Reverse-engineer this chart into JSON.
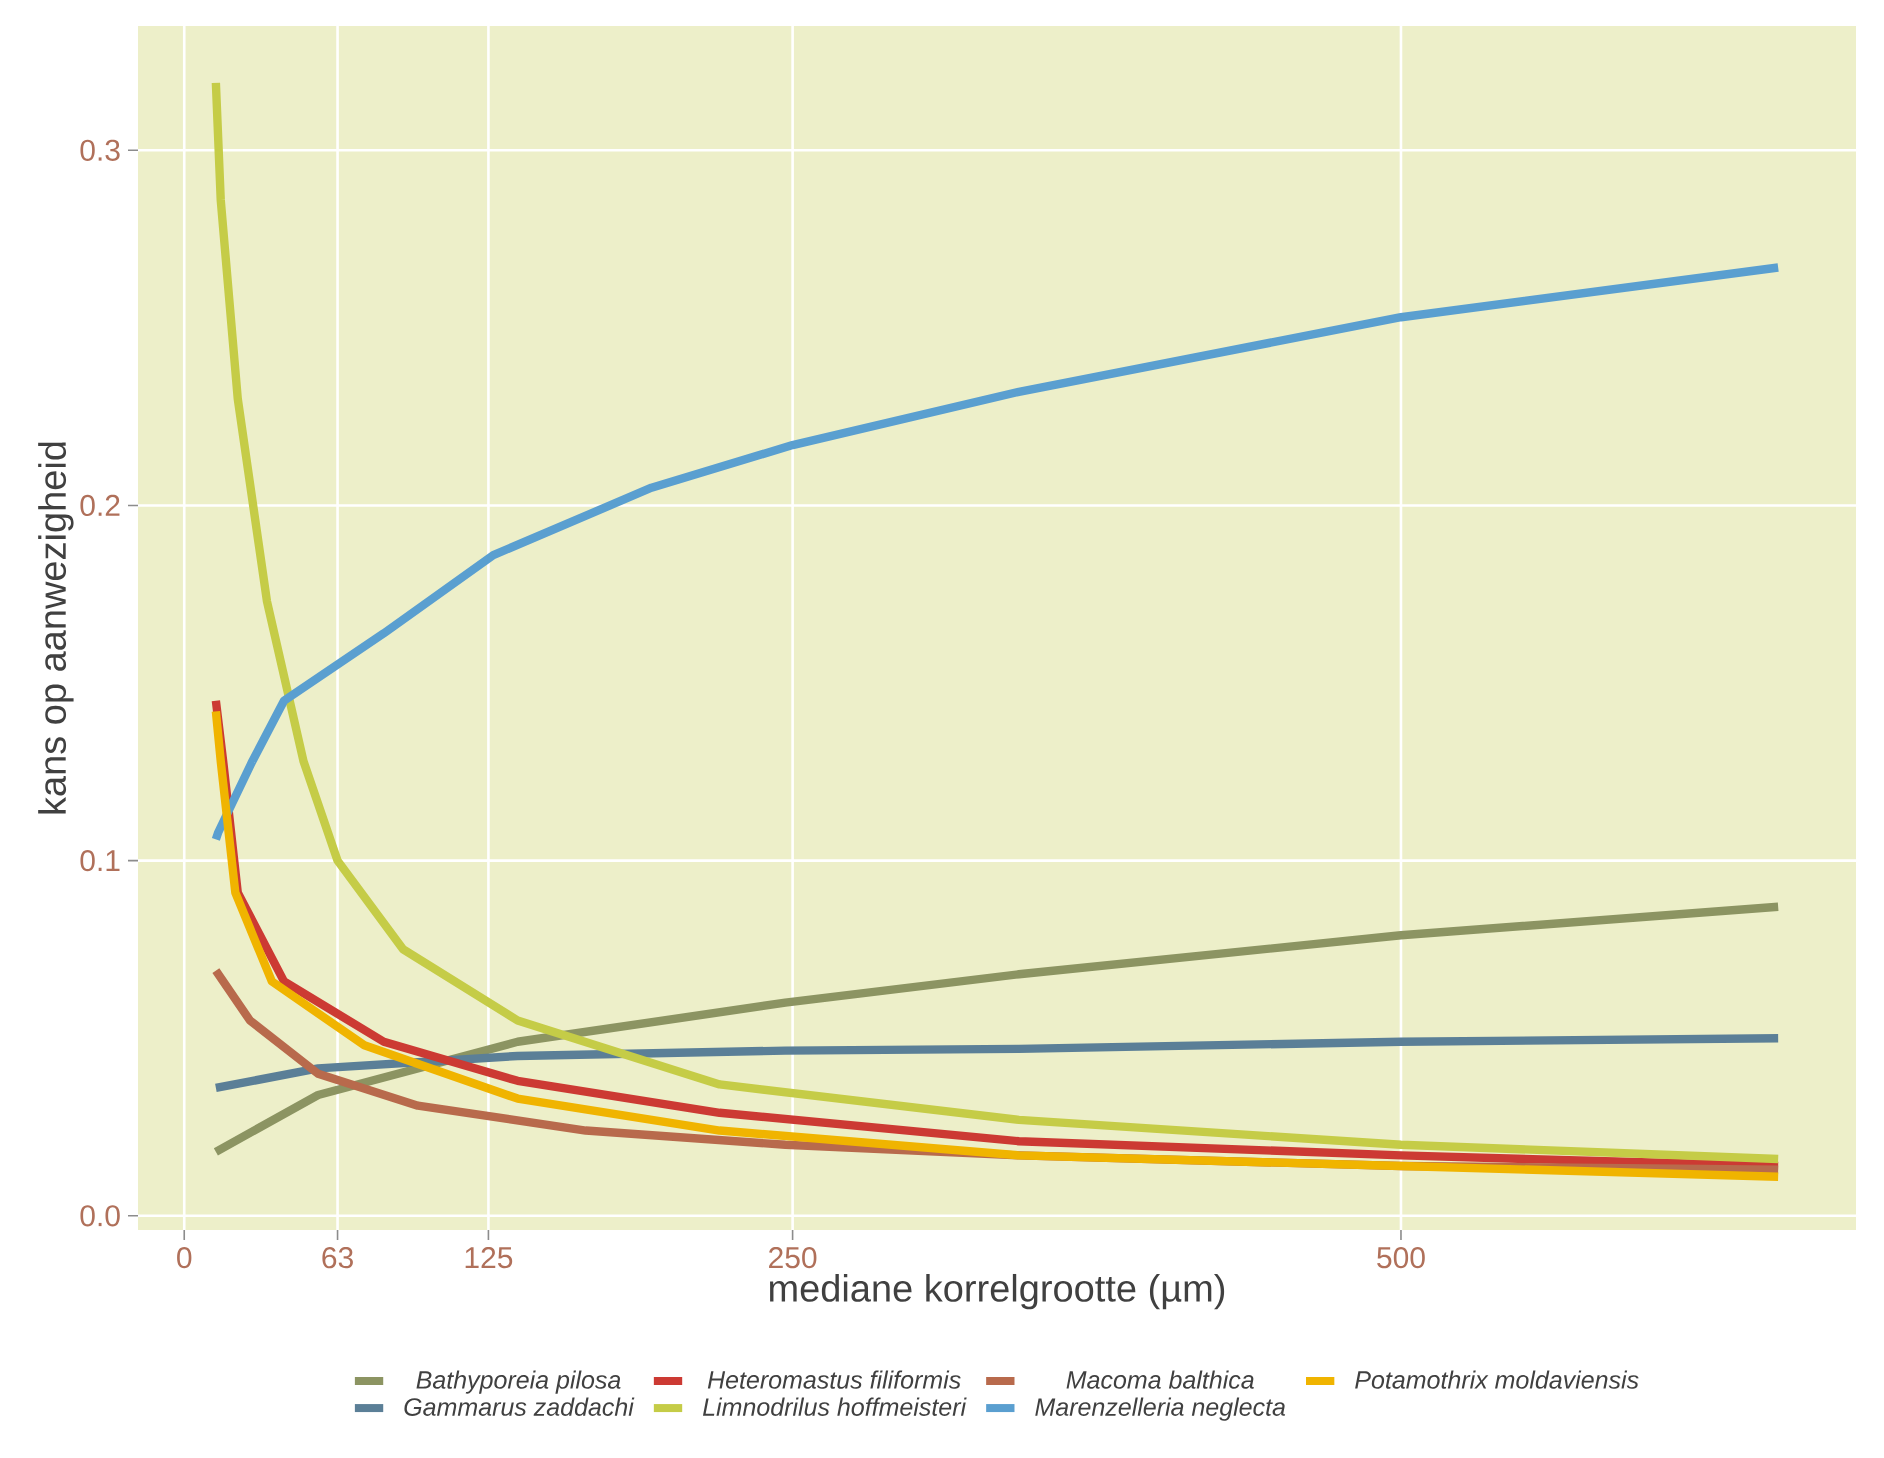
{
  "chart_data": {
    "type": "line",
    "xlabel": "mediane korrelgrootte (µm)",
    "ylabel": "kans op aanwezigheid",
    "xlim": [
      -19,
      687
    ],
    "ylim": [
      -0.004,
      0.335
    ],
    "xticks": [
      0,
      63,
      125,
      250,
      500
    ],
    "yticks": [
      {
        "value": 0,
        "label": "0.0"
      },
      {
        "value": 0.1,
        "label": "0.1"
      },
      {
        "value": 0.2,
        "label": "0.2"
      },
      {
        "value": 0.3,
        "label": "0.3"
      }
    ],
    "grid": true,
    "legend": "bottom",
    "series": [
      {
        "name": "Bathyporeia pilosa",
        "color": "#8c9462",
        "x": [
          13,
          55,
          137,
          247,
          343,
          500,
          655
        ],
        "values": [
          0.018,
          0.034,
          0.049,
          0.06,
          0.068,
          0.079,
          0.087
        ]
      },
      {
        "name": "Gammarus zaddachi",
        "color": "#5b7f97",
        "x": [
          13,
          55,
          137,
          247,
          343,
          500,
          655
        ],
        "values": [
          0.036,
          0.0415,
          0.045,
          0.0465,
          0.047,
          0.049,
          0.05
        ]
      },
      {
        "name": "Heteromastus filiformis",
        "color": "#cc3a33",
        "x": [
          13,
          16,
          22,
          41,
          82,
          137,
          220,
          343,
          500,
          655
        ],
        "values": [
          0.145,
          0.128,
          0.091,
          0.066,
          0.049,
          0.038,
          0.029,
          0.021,
          0.017,
          0.014
        ]
      },
      {
        "name": "Limnodrilus hoffmeisteri",
        "color": "#c5cc47",
        "x": [
          13,
          15,
          22,
          34,
          49,
          63,
          90,
          137,
          220,
          343,
          500,
          655
        ],
        "values": [
          0.319,
          0.286,
          0.23,
          0.173,
          0.128,
          0.1,
          0.075,
          0.055,
          0.037,
          0.027,
          0.02,
          0.016
        ]
      },
      {
        "name": "Macoma balthica",
        "color": "#b86a4c",
        "x": [
          13,
          27,
          55,
          96,
          165,
          247,
          343,
          500,
          655
        ],
        "values": [
          0.069,
          0.055,
          0.04,
          0.031,
          0.024,
          0.02,
          0.017,
          0.014,
          0.013
        ]
      },
      {
        "name": "Marenzelleria neglecta",
        "color": "#5a9fd0",
        "x": [
          13,
          14,
          28,
          41,
          82,
          127,
          192,
          250,
          343,
          500,
          655
        ],
        "values": [
          0.106,
          0.108,
          0.128,
          0.145,
          0.164,
          0.186,
          0.205,
          0.217,
          0.232,
          0.253,
          0.267
        ]
      },
      {
        "name": "Potamothrix moldaviensis",
        "color": "#f0b400",
        "x": [
          13,
          15,
          21,
          36,
          74,
          137,
          220,
          343,
          500,
          655
        ],
        "values": [
          0.142,
          0.128,
          0.091,
          0.066,
          0.048,
          0.033,
          0.024,
          0.017,
          0.014,
          0.011
        ]
      }
    ]
  }
}
